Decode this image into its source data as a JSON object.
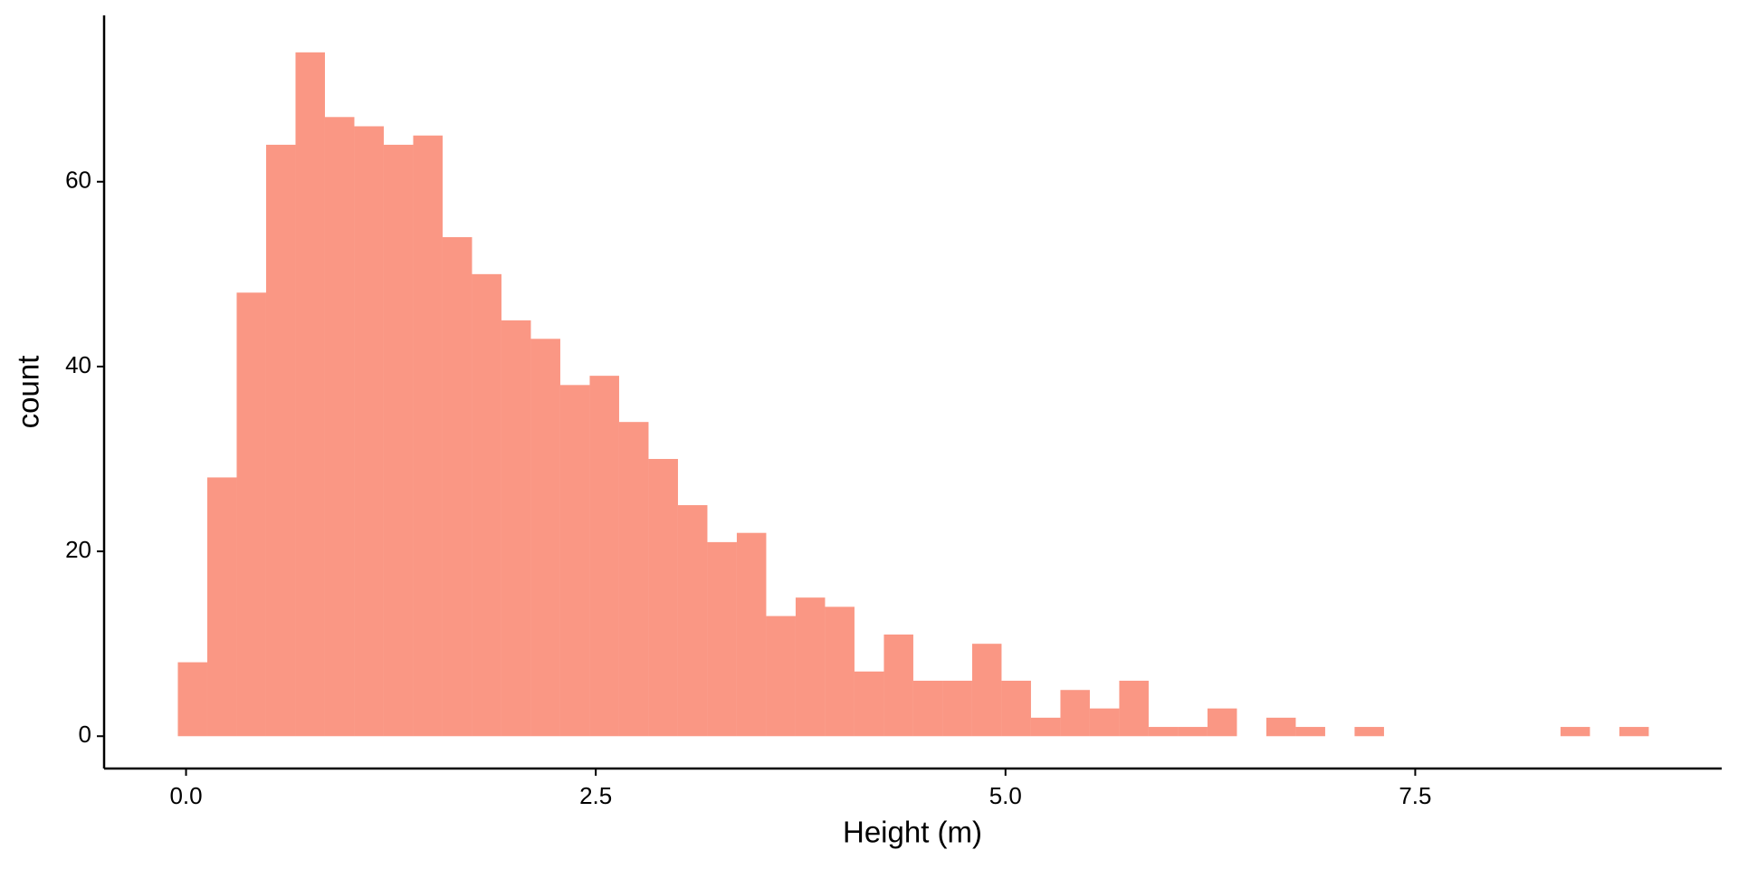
{
  "chart_data": {
    "type": "histogram",
    "x_label": "Height (m)",
    "y_label": "count",
    "bins": [
      -0.05,
      0.1295,
      0.309,
      0.4885,
      0.668,
      0.8475,
      1.027,
      1.2065,
      1.386,
      1.5655,
      1.745,
      1.9245,
      2.104,
      2.2835,
      2.463,
      2.6425,
      2.822,
      3.0015,
      3.181,
      3.3605,
      3.54,
      3.7195,
      3.899,
      4.0785,
      4.258,
      4.4375,
      4.617,
      4.7965,
      4.976,
      5.1555,
      5.335,
      5.5145,
      5.694,
      5.8735,
      6.053,
      6.2325,
      6.412,
      6.5915,
      6.771,
      6.9505,
      7.13,
      7.3095,
      7.489,
      7.6685,
      7.848,
      8.0275,
      8.207,
      8.3865,
      8.566,
      8.7455,
      8.925
    ],
    "values": [
      8,
      28,
      48,
      64,
      74,
      67,
      66,
      64,
      65,
      54,
      50,
      45,
      43,
      38,
      39,
      34,
      30,
      25,
      21,
      22,
      13,
      15,
      14,
      7,
      11,
      6,
      6,
      10,
      6,
      2,
      5,
      3,
      6,
      1,
      1,
      3,
      0,
      2,
      1,
      0,
      1,
      0,
      0,
      0,
      0,
      0,
      0,
      1,
      0,
      1
    ],
    "color": "#fa9784",
    "xlim": [
      -0.5,
      9.37
    ],
    "ylim": [
      -3.5,
      78
    ],
    "xticks": [
      {
        "value": 0,
        "label": "0.0"
      },
      2.5,
      {
        "value": 5,
        "label": "5.0"
      },
      7.5
    ],
    "yticks": [
      0,
      20,
      40,
      60
    ],
    "grid": false
  }
}
